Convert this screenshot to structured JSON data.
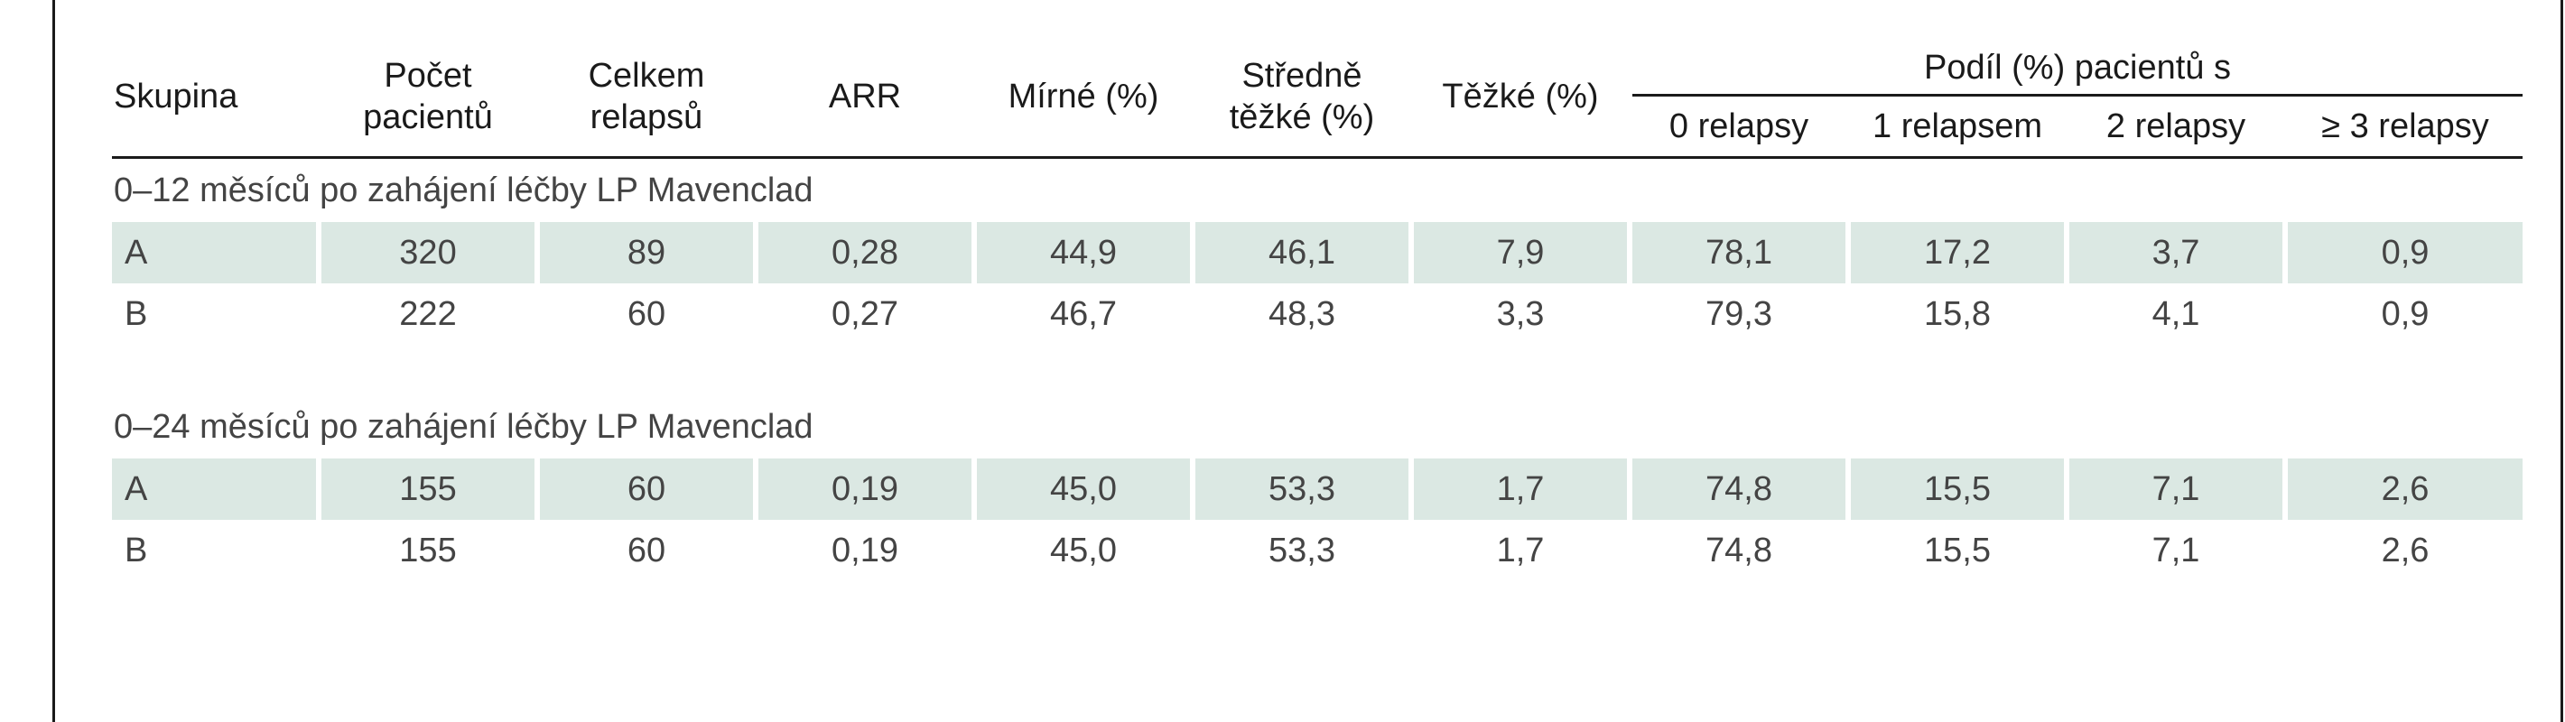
{
  "headers": {
    "skupina": "Skupina",
    "pocet_l1": "Počet",
    "pocet_l2": "pacientů",
    "celkem_l1": "Celkem",
    "celkem_l2": "relapsů",
    "arr": "ARR",
    "mirne": "Mírné (%)",
    "stredne_l1": "Středně",
    "stredne_l2": "těžké (%)",
    "tezke": "Těžké (%)",
    "podil": "Podíl (%) pacientů s",
    "rel0": "0 relapsy",
    "rel1": "1 relapsem",
    "rel2": "2 relapsy",
    "rel3": "≥ 3 relapsy"
  },
  "sections": [
    {
      "title": "0–12 měsíců po zahájení léčby LP Mavenclad",
      "rows": [
        {
          "group": "A",
          "pocet": "320",
          "celkem": "89",
          "arr": "0,28",
          "mirne": "44,9",
          "stredne": "46,1",
          "tezke": "7,9",
          "rel0": "78,1",
          "rel1": "17,2",
          "rel2": "3,7",
          "rel3": "0,9"
        },
        {
          "group": "B",
          "pocet": "222",
          "celkem": "60",
          "arr": "0,27",
          "mirne": "46,7",
          "stredne": "48,3",
          "tezke": "3,3",
          "rel0": "79,3",
          "rel1": "15,8",
          "rel2": "4,1",
          "rel3": "0,9"
        }
      ]
    },
    {
      "title": "0–24 měsíců po zahájení léčby LP Mavenclad",
      "rows": [
        {
          "group": "A",
          "pocet": "155",
          "celkem": "60",
          "arr": "0,19",
          "mirne": "45,0",
          "stredne": "53,3",
          "tezke": "1,7",
          "rel0": "74,8",
          "rel1": "15,5",
          "rel2": "7,1",
          "rel3": "2,6"
        },
        {
          "group": "B",
          "pocet": "155",
          "celkem": "60",
          "arr": "0,19",
          "mirne": "45,0",
          "stredne": "53,3",
          "tezke": "1,7",
          "rel0": "74,8",
          "rel1": "15,5",
          "rel2": "7,1",
          "rel3": "2,6"
        }
      ]
    }
  ],
  "colors": {
    "shade": "#dbe8e3",
    "text": "#444444",
    "rule": "#1a1a1a"
  }
}
